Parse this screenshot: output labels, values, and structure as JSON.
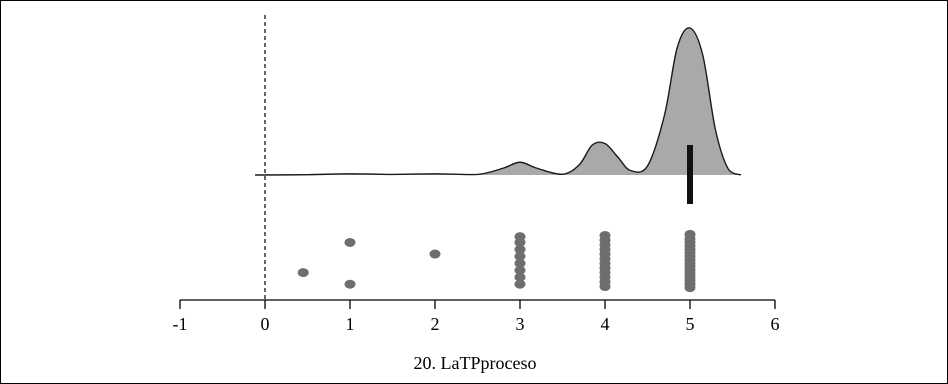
{
  "chart_data": {
    "type": "raincloud",
    "xlabel": "20. LaTPproceso",
    "title": "",
    "ylabel": "",
    "xlim": [
      -1,
      6
    ],
    "xticks": [
      -1,
      0,
      1,
      2,
      3,
      4,
      5,
      6
    ],
    "xtick_labels": [
      "-1",
      "0",
      "1",
      "2",
      "3",
      "4",
      "5",
      "6"
    ],
    "reference_line_x": 0,
    "median": 5,
    "density": {
      "x": [
        -0.1,
        0.5,
        1.0,
        1.5,
        2.0,
        2.5,
        2.8,
        3.0,
        3.2,
        3.5,
        3.7,
        3.85,
        4.0,
        4.15,
        4.3,
        4.5,
        4.7,
        4.85,
        5.0,
        5.15,
        5.3,
        5.45,
        5.6
      ],
      "y": [
        0,
        0.002,
        0.008,
        0.004,
        0.008,
        0.004,
        0.045,
        0.085,
        0.045,
        0.005,
        0.07,
        0.2,
        0.21,
        0.12,
        0.03,
        0.06,
        0.4,
        0.85,
        0.98,
        0.8,
        0.3,
        0.04,
        0
      ]
    },
    "points": [
      {
        "x": 0.45,
        "jitter": 0.3
      },
      {
        "x": 1.0,
        "jitter": 0.82
      },
      {
        "x": 1.0,
        "jitter": 0.1
      },
      {
        "x": 2.0,
        "jitter": 0.62
      },
      {
        "x": 3.0,
        "jitter": 0.1
      },
      {
        "x": 3.0,
        "jitter": 0.22
      },
      {
        "x": 3.0,
        "jitter": 0.34
      },
      {
        "x": 3.0,
        "jitter": 0.46
      },
      {
        "x": 3.0,
        "jitter": 0.58
      },
      {
        "x": 3.0,
        "jitter": 0.7
      },
      {
        "x": 3.0,
        "jitter": 0.82
      },
      {
        "x": 3.0,
        "jitter": 0.92
      },
      {
        "x": 4.0,
        "jitter": 0.06
      },
      {
        "x": 4.0,
        "jitter": 0.14
      },
      {
        "x": 4.0,
        "jitter": 0.22
      },
      {
        "x": 4.0,
        "jitter": 0.3
      },
      {
        "x": 4.0,
        "jitter": 0.38
      },
      {
        "x": 4.0,
        "jitter": 0.46
      },
      {
        "x": 4.0,
        "jitter": 0.54
      },
      {
        "x": 4.0,
        "jitter": 0.62
      },
      {
        "x": 4.0,
        "jitter": 0.7
      },
      {
        "x": 4.0,
        "jitter": 0.78
      },
      {
        "x": 4.0,
        "jitter": 0.86
      },
      {
        "x": 4.0,
        "jitter": 0.94
      },
      {
        "x": 5.0,
        "jitter": 0.04
      },
      {
        "x": 5.0,
        "jitter": 0.1
      },
      {
        "x": 5.0,
        "jitter": 0.16
      },
      {
        "x": 5.0,
        "jitter": 0.22
      },
      {
        "x": 5.0,
        "jitter": 0.28
      },
      {
        "x": 5.0,
        "jitter": 0.34
      },
      {
        "x": 5.0,
        "jitter": 0.4
      },
      {
        "x": 5.0,
        "jitter": 0.46
      },
      {
        "x": 5.0,
        "jitter": 0.52
      },
      {
        "x": 5.0,
        "jitter": 0.58
      },
      {
        "x": 5.0,
        "jitter": 0.64
      },
      {
        "x": 5.0,
        "jitter": 0.7
      },
      {
        "x": 5.0,
        "jitter": 0.76
      },
      {
        "x": 5.0,
        "jitter": 0.82
      },
      {
        "x": 5.0,
        "jitter": 0.88
      },
      {
        "x": 5.0,
        "jitter": 0.96
      }
    ],
    "colors": {
      "density_fill": "#a9a9a9",
      "density_stroke": "#1a1a1a",
      "point": "#6e6e6e",
      "median_bar": "#111111",
      "axis": "#000000",
      "reference_line": "#000000"
    },
    "grid": false,
    "legend": "none"
  }
}
